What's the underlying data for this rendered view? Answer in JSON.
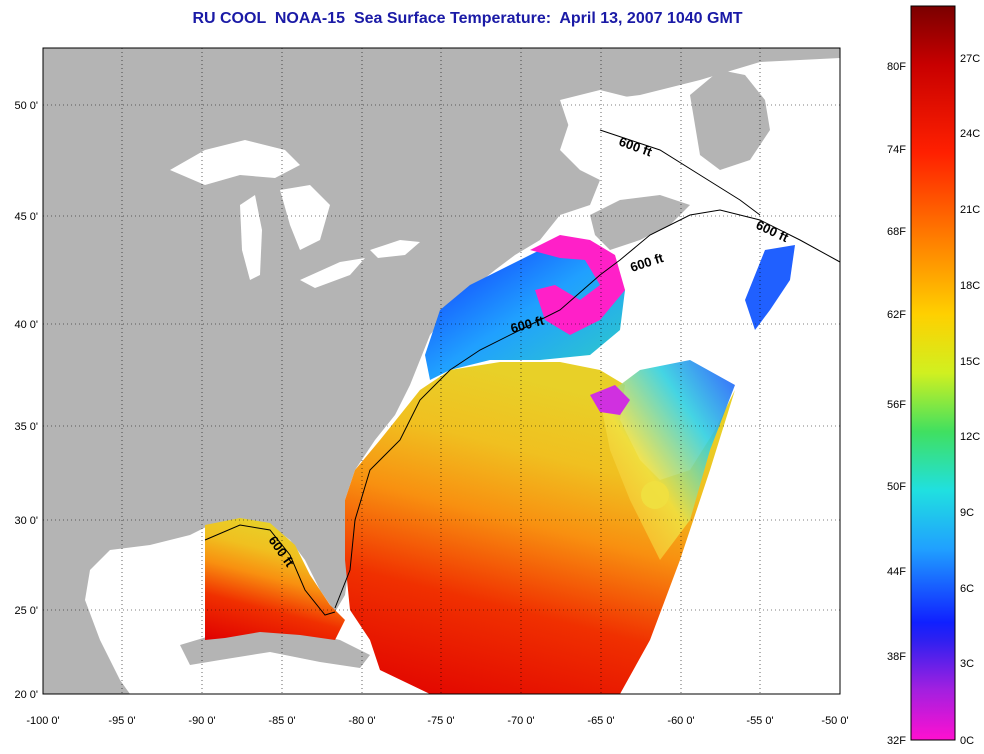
{
  "title": "RU COOL  NOAA-15  Sea Surface Temperature:  April 13, 2007 1040 GMT",
  "map": {
    "lon_labels": [
      "-100 0'",
      "-95 0'",
      "-90 0'",
      "-85 0'",
      "-80 0'",
      "-75 0'",
      "-70 0'",
      "-65 0'",
      "-60 0'",
      "-55 0'",
      "-50 0'"
    ],
    "lat_labels": [
      "50 0'",
      "45 0'",
      "40 0'",
      "35 0'",
      "30 0'",
      "25 0'",
      "20 0'"
    ],
    "contour_labels": [
      "600 ft",
      "600 ft",
      "600 ft",
      "600 ft",
      "600 ft"
    ],
    "colors": {
      "land": "#b4b4b4",
      "cloud": "#ffffff"
    }
  },
  "colorbar": {
    "celsius_labels": [
      "27C",
      "24C",
      "21C",
      "18C",
      "15C",
      "12C",
      "9C",
      "6C",
      "3C",
      "0C"
    ],
    "fahrenheit_labels": [
      "80F",
      "74F",
      "68F",
      "62F",
      "56F",
      "50F",
      "44F",
      "38F",
      "32F"
    ]
  }
}
